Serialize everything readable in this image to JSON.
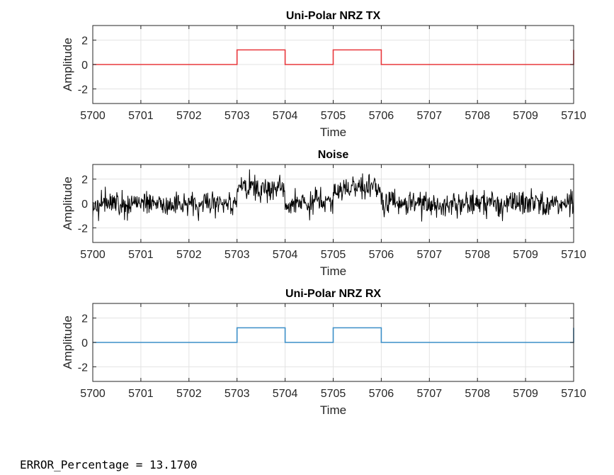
{
  "chart_data": [
    {
      "type": "line",
      "title": "Uni-Polar NRZ TX",
      "xlabel": "Time",
      "ylabel": "Amplitude",
      "xlim": [
        5700,
        5710
      ],
      "ylim": [
        -3.2,
        3.2
      ],
      "xticks": [
        5700,
        5701,
        5702,
        5703,
        5704,
        5705,
        5706,
        5707,
        5708,
        5709,
        5710
      ],
      "yticks": [
        -2,
        0,
        2
      ],
      "grid": true,
      "color": "#e8383d",
      "series": [
        {
          "x": [
            5700,
            5703,
            5703,
            5704,
            5704,
            5705,
            5705,
            5706,
            5706,
            5710,
            5710
          ],
          "values": [
            0,
            0,
            1.2,
            1.2,
            0,
            0,
            1.2,
            1.2,
            0,
            0,
            1.2
          ]
        }
      ]
    },
    {
      "type": "line",
      "title": "Noise",
      "xlabel": "Time",
      "ylabel": "Amplitude",
      "xlim": [
        5700,
        5710
      ],
      "ylim": [
        -3.2,
        3.2
      ],
      "xticks": [
        5700,
        5701,
        5702,
        5703,
        5704,
        5705,
        5706,
        5707,
        5708,
        5709,
        5710
      ],
      "yticks": [
        -2,
        0,
        2
      ],
      "grid": true,
      "color": "#000000",
      "series": [
        {
          "bits": [
            0,
            0,
            0,
            1,
            0,
            1,
            0,
            0,
            0,
            0
          ],
          "bit_level": 1.2,
          "noise_std": 0.5,
          "samples_per_bit": 100
        }
      ]
    },
    {
      "type": "line",
      "title": "Uni-Polar NRZ RX",
      "xlabel": "Time",
      "ylabel": "Amplitude",
      "xlim": [
        5700,
        5710
      ],
      "ylim": [
        -3.2,
        3.2
      ],
      "xticks": [
        5700,
        5701,
        5702,
        5703,
        5704,
        5705,
        5706,
        5707,
        5708,
        5709,
        5710
      ],
      "yticks": [
        -2,
        0,
        2
      ],
      "grid": true,
      "color": "#3c8fc8",
      "series": [
        {
          "x": [
            5700,
            5703,
            5703,
            5704,
            5704,
            5705,
            5705,
            5706,
            5706,
            5710,
            5710
          ],
          "values": [
            0,
            0,
            1.2,
            1.2,
            0,
            0,
            1.2,
            1.2,
            0,
            0,
            1.2
          ]
        }
      ]
    }
  ],
  "console": {
    "error_line": "ERROR_Percentage = 13.1700"
  }
}
